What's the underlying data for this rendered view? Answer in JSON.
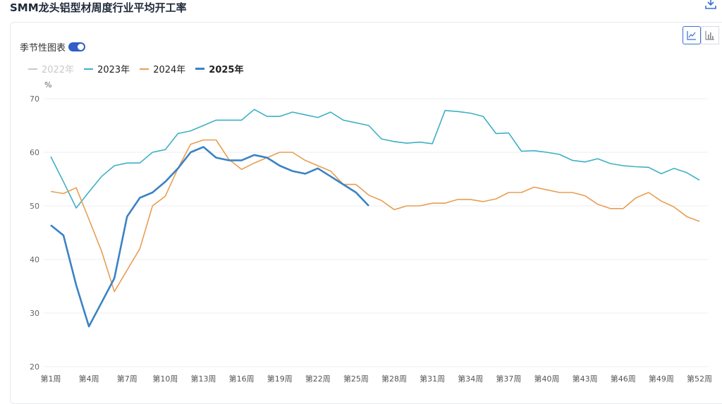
{
  "page": {
    "title": "SMM龙头铝型材周度行业平均开工率"
  },
  "controls": {
    "seasonal_label": "季节性图表",
    "seasonal_on": true,
    "view_icons": [
      "line-chart-icon",
      "bar-chart-icon"
    ]
  },
  "colors": {
    "y2022": "#c9c9c9",
    "y2023": "#3eb0c4",
    "y2024": "#e89e52",
    "y2025": "#3b82c4"
  },
  "chart_data": {
    "type": "line",
    "title": "SMM龙头铝型材周度行业平均开工率",
    "ylabel": "%",
    "ylim": [
      20,
      70
    ],
    "y_ticks": [
      "20",
      "30",
      "40",
      "50",
      "60",
      "70"
    ],
    "x_tick_labels": [
      "第1周",
      "第4周",
      "第7周",
      "第10周",
      "第13周",
      "第16周",
      "第19周",
      "第22周",
      "第25周",
      "第28周",
      "第31周",
      "第34周",
      "第37周",
      "第40周",
      "第43周",
      "第46周",
      "第49周",
      "第52周"
    ],
    "x_weeks": [
      1,
      2,
      3,
      4,
      5,
      6,
      7,
      8,
      9,
      10,
      11,
      12,
      13,
      14,
      15,
      16,
      17,
      18,
      19,
      20,
      21,
      22,
      23,
      24,
      25,
      26,
      27,
      28,
      29,
      30,
      31,
      32,
      33,
      34,
      35,
      36,
      37,
      38,
      39,
      40,
      41,
      42,
      43,
      44,
      45,
      46,
      47,
      48,
      49,
      50,
      51,
      52
    ],
    "legend_placement": "top-left",
    "series": [
      {
        "name": "2022年",
        "hidden": true,
        "values": []
      },
      {
        "name": "2023年",
        "values": [
          59.2,
          54.5,
          49.6,
          52.6,
          55.5,
          57.5,
          58.0,
          58.0,
          60.0,
          60.5,
          63.5,
          64.0,
          65.0,
          66.0,
          66.0,
          66.0,
          68.0,
          66.7,
          66.7,
          67.5,
          67.0,
          66.5,
          67.5,
          66.0,
          65.5,
          65.0,
          62.5,
          62.0,
          61.7,
          61.9,
          61.6,
          67.8,
          67.6,
          67.3,
          66.7,
          63.5,
          63.6,
          60.2,
          60.3,
          60.0,
          59.6,
          58.5,
          58.2,
          58.8,
          57.9,
          57.5,
          57.3,
          57.2,
          56.0,
          57.0,
          56.2,
          54.8
        ]
      },
      {
        "name": "2024年",
        "values": [
          52.7,
          52.3,
          53.4,
          47.5,
          41.5,
          34.0,
          38.0,
          42.0,
          50.0,
          51.8,
          57.0,
          61.5,
          62.3,
          62.3,
          58.7,
          56.8,
          58.0,
          59.0,
          60.0,
          60.0,
          58.5,
          57.5,
          56.5,
          54.0,
          54.0,
          52.0,
          51.0,
          49.3,
          50.0,
          50.0,
          50.5,
          50.5,
          51.2,
          51.2,
          50.8,
          51.3,
          52.5,
          52.5,
          53.5,
          53.0,
          52.5,
          52.5,
          51.9,
          50.3,
          49.5,
          49.5,
          51.5,
          52.5,
          50.9,
          49.8,
          48.0,
          47.1
        ]
      },
      {
        "name": "2025年",
        "bold": true,
        "values": [
          46.4,
          44.5,
          35.2,
          27.5,
          32.0,
          36.5,
          48.0,
          51.5,
          52.5,
          54.5,
          57.0,
          60.0,
          61.0,
          59.0,
          58.5,
          58.5,
          59.5,
          59.0,
          57.5,
          56.5,
          56.0,
          57.0,
          55.5,
          54.0,
          52.5,
          50.0
        ]
      }
    ]
  }
}
